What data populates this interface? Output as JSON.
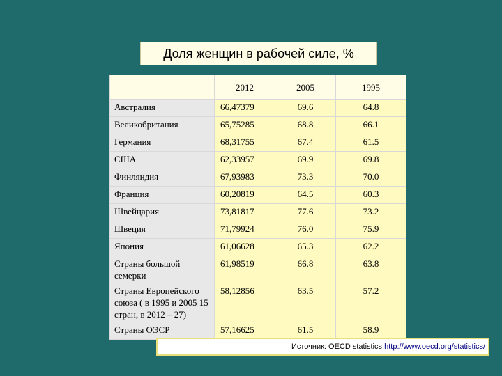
{
  "title": "Доля женщин в рабочей силе, %",
  "table": {
    "headers": [
      "",
      "2012",
      "2005",
      "1995"
    ],
    "rows": [
      {
        "country": "Австралия",
        "y2012": "66,47379",
        "y2005": "69.6",
        "y1995": "64.8"
      },
      {
        "country": "Великобритания",
        "y2012": "65,75285",
        "y2005": "68.8",
        "y1995": "66.1"
      },
      {
        "country": "Германия",
        "y2012": "68,31755",
        "y2005": "67.4",
        "y1995": "61.5"
      },
      {
        "country": "США",
        "y2012": "62,33957",
        "y2005": "69.9",
        "y1995": "69.8"
      },
      {
        "country": "Финляндия",
        "y2012": "67,93983",
        "y2005": "73.3",
        "y1995": "70.0"
      },
      {
        "country": "Франция",
        "y2012": "60,20819",
        "y2005": "64.5",
        "y1995": "60.3"
      },
      {
        "country": "Швейцария",
        "y2012": "73,81817",
        "y2005": "77.6",
        "y1995": "73.2"
      },
      {
        "country": "Швеция",
        "y2012": "71,79924",
        "y2005": "76.0",
        "y1995": "75.9"
      },
      {
        "country": "Япония",
        "y2012": "61,06628",
        "y2005": "65.3",
        "y1995": "62.2"
      },
      {
        "country": "Страны большой семерки",
        "y2012": "61,98519",
        "y2005": "66.8",
        "y1995": "63.8"
      },
      {
        "country": "Страны Европейского союза ( в 1995 и 2005 15 стран, в 2012 – 27)",
        "y2012": "58,12856",
        "y2005": "63.5",
        "y1995": "57.2"
      },
      {
        "country": "Страны ОЭСР",
        "y2012": "57,16625",
        "y2005": "61.5",
        "y1995": "58.9"
      }
    ]
  },
  "source": {
    "prefix": "Источник: OECD statistics, ",
    "link": "http://www.oecd.org/statistics/"
  }
}
